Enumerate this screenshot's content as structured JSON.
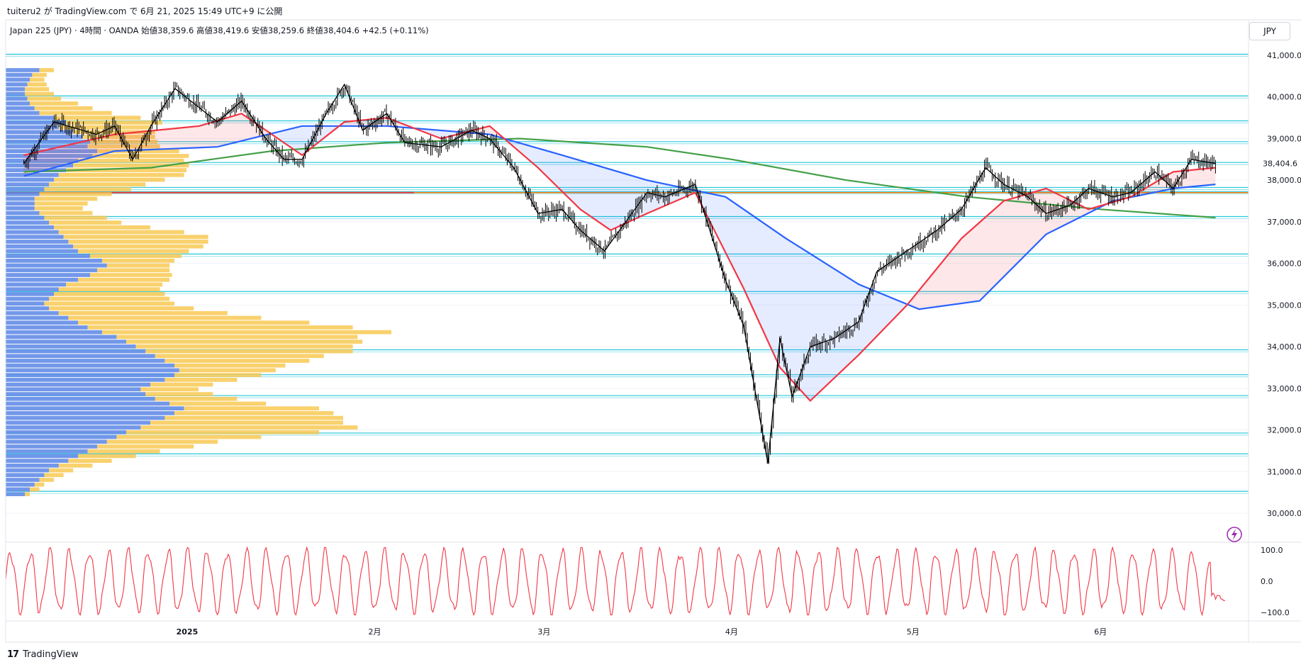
{
  "header": {
    "published_line": "tuiteru2 が TradingView.com で 6月 21, 2025 15:49 UTC+9 に公開",
    "symbol_line": "Japan 225 (JPY) · 4時間 · OANDA  始値38,359.6  高値38,419.6  安値38,259.6  終値38,404.6  +42.5 (+0.11%)",
    "currency": "JPY"
  },
  "footer": {
    "brand": "TradingView",
    "brand_mark": "17"
  },
  "colors": {
    "candle": "#000000",
    "ma_fast": "#f23645",
    "ma_mid": "#2962ff",
    "ma_slow": "#43a047",
    "sr_line": "#26c6da",
    "poc_line": "#f57c00",
    "vp_up": "#5b86e5",
    "vp_down": "#f7c548",
    "oscillator": "#f23645",
    "axis_text": "#131722",
    "grid": "#f0f3fa"
  },
  "chart_data": [
    {
      "type": "line",
      "name": "price",
      "y_axis_ticks": [
        "41,000.0",
        "40,000.0",
        "39,000.0",
        "38,000.0",
        "37,000.0",
        "36,000.0",
        "35,000.0",
        "34,000.0",
        "33,000.0",
        "32,000.0",
        "31,000.0",
        "30,000.0"
      ],
      "ylim": [
        29800,
        41200
      ],
      "x_labels": [
        "2025",
        "2月",
        "3月",
        "4月",
        "5月",
        "6月"
      ],
      "last_price_label": "38,404.6",
      "last_price": 38404.6,
      "close_path": [
        {
          "x": "2024-12-05",
          "y": 38400
        },
        {
          "x": "2024-12-10",
          "y": 39400
        },
        {
          "x": "2024-12-17",
          "y": 39100
        },
        {
          "x": "2024-12-20",
          "y": 39300
        },
        {
          "x": "2024-12-23",
          "y": 38500
        },
        {
          "x": "2024-12-26",
          "y": 39300
        },
        {
          "x": "2024-12-30",
          "y": 40200
        },
        {
          "x": "2025-01-06",
          "y": 39400
        },
        {
          "x": "2025-01-10",
          "y": 39900
        },
        {
          "x": "2025-01-14",
          "y": 39000
        },
        {
          "x": "2025-01-17",
          "y": 38500
        },
        {
          "x": "2025-01-20",
          "y": 38500
        },
        {
          "x": "2025-01-24",
          "y": 39600
        },
        {
          "x": "2025-01-27",
          "y": 40300
        },
        {
          "x": "2025-01-30",
          "y": 39200
        },
        {
          "x": "2025-02-03",
          "y": 39600
        },
        {
          "x": "2025-02-06",
          "y": 38900
        },
        {
          "x": "2025-02-12",
          "y": 38800
        },
        {
          "x": "2025-02-17",
          "y": 39200
        },
        {
          "x": "2025-02-20",
          "y": 39000
        },
        {
          "x": "2025-02-24",
          "y": 38300
        },
        {
          "x": "2025-02-28",
          "y": 37200
        },
        {
          "x": "2025-03-04",
          "y": 37300
        },
        {
          "x": "2025-03-07",
          "y": 36800
        },
        {
          "x": "2025-03-11",
          "y": 36300
        },
        {
          "x": "2025-03-14",
          "y": 36900
        },
        {
          "x": "2025-03-18",
          "y": 37700
        },
        {
          "x": "2025-03-21",
          "y": 37600
        },
        {
          "x": "2025-03-26",
          "y": 37900
        },
        {
          "x": "2025-03-31",
          "y": 35600
        },
        {
          "x": "2025-04-03",
          "y": 34500
        },
        {
          "x": "2025-04-07",
          "y": 31200
        },
        {
          "x": "2025-04-09",
          "y": 34200
        },
        {
          "x": "2025-04-11",
          "y": 32800
        },
        {
          "x": "2025-04-14",
          "y": 34000
        },
        {
          "x": "2025-04-18",
          "y": 34200
        },
        {
          "x": "2025-04-22",
          "y": 34600
        },
        {
          "x": "2025-04-25",
          "y": 35800
        },
        {
          "x": "2025-04-30",
          "y": 36300
        },
        {
          "x": "2025-05-05",
          "y": 36800
        },
        {
          "x": "2025-05-09",
          "y": 37300
        },
        {
          "x": "2025-05-13",
          "y": 38300
        },
        {
          "x": "2025-05-16",
          "y": 37900
        },
        {
          "x": "2025-05-20",
          "y": 37600
        },
        {
          "x": "2025-05-23",
          "y": 37200
        },
        {
          "x": "2025-05-27",
          "y": 37400
        },
        {
          "x": "2025-05-30",
          "y": 37800
        },
        {
          "x": "2025-06-03",
          "y": 37600
        },
        {
          "x": "2025-06-06",
          "y": 37700
        },
        {
          "x": "2025-06-10",
          "y": 38200
        },
        {
          "x": "2025-06-13",
          "y": 37800
        },
        {
          "x": "2025-06-16",
          "y": 38500
        },
        {
          "x": "2025-06-20",
          "y": 38400
        }
      ],
      "ma_fast": [
        {
          "x": "2024-12-05",
          "y": 38600
        },
        {
          "x": "2024-12-20",
          "y": 39100
        },
        {
          "x": "2025-01-03",
          "y": 39300
        },
        {
          "x": "2025-01-10",
          "y": 39600
        },
        {
          "x": "2025-01-20",
          "y": 38600
        },
        {
          "x": "2025-01-27",
          "y": 39400
        },
        {
          "x": "2025-02-03",
          "y": 39500
        },
        {
          "x": "2025-02-12",
          "y": 39000
        },
        {
          "x": "2025-02-20",
          "y": 39300
        },
        {
          "x": "2025-02-28",
          "y": 38300
        },
        {
          "x": "2025-03-07",
          "y": 37300
        },
        {
          "x": "2025-03-12",
          "y": 36800
        },
        {
          "x": "2025-03-18",
          "y": 37200
        },
        {
          "x": "2025-03-26",
          "y": 37700
        },
        {
          "x": "2025-04-03",
          "y": 35400
        },
        {
          "x": "2025-04-09",
          "y": 33500
        },
        {
          "x": "2025-04-14",
          "y": 32700
        },
        {
          "x": "2025-04-22",
          "y": 33800
        },
        {
          "x": "2025-04-30",
          "y": 35000
        },
        {
          "x": "2025-05-09",
          "y": 36600
        },
        {
          "x": "2025-05-16",
          "y": 37500
        },
        {
          "x": "2025-05-23",
          "y": 37800
        },
        {
          "x": "2025-05-30",
          "y": 37300
        },
        {
          "x": "2025-06-06",
          "y": 37600
        },
        {
          "x": "2025-06-13",
          "y": 38200
        },
        {
          "x": "2025-06-20",
          "y": 38300
        }
      ],
      "ma_mid": [
        {
          "x": "2024-12-05",
          "y": 38100
        },
        {
          "x": "2024-12-20",
          "y": 38700
        },
        {
          "x": "2025-01-06",
          "y": 38800
        },
        {
          "x": "2025-01-20",
          "y": 39300
        },
        {
          "x": "2025-02-03",
          "y": 39300
        },
        {
          "x": "2025-02-20",
          "y": 39100
        },
        {
          "x": "2025-03-04",
          "y": 38600
        },
        {
          "x": "2025-03-18",
          "y": 38000
        },
        {
          "x": "2025-03-31",
          "y": 37600
        },
        {
          "x": "2025-04-10",
          "y": 36600
        },
        {
          "x": "2025-04-22",
          "y": 35500
        },
        {
          "x": "2025-05-02",
          "y": 34900
        },
        {
          "x": "2025-05-12",
          "y": 35100
        },
        {
          "x": "2025-05-23",
          "y": 36700
        },
        {
          "x": "2025-06-03",
          "y": 37500
        },
        {
          "x": "2025-06-13",
          "y": 37800
        },
        {
          "x": "2025-06-20",
          "y": 37900
        }
      ],
      "ma_slow": [
        {
          "x": "2024-12-05",
          "y": 38200
        },
        {
          "x": "2024-12-26",
          "y": 38300
        },
        {
          "x": "2025-01-15",
          "y": 38700
        },
        {
          "x": "2025-02-03",
          "y": 38900
        },
        {
          "x": "2025-02-25",
          "y": 39000
        },
        {
          "x": "2025-03-18",
          "y": 38800
        },
        {
          "x": "2025-04-01",
          "y": 38500
        },
        {
          "x": "2025-04-20",
          "y": 38000
        },
        {
          "x": "2025-05-10",
          "y": 37600
        },
        {
          "x": "2025-06-01",
          "y": 37300
        },
        {
          "x": "2025-06-20",
          "y": 37100
        }
      ],
      "support_resistance": [
        41000,
        40000,
        39400,
        38900,
        38400,
        37800,
        37700,
        37100,
        36200,
        35300,
        33900,
        33300,
        32800,
        31900,
        31400,
        30500
      ],
      "poc_level": 37700
    },
    {
      "type": "bar",
      "name": "volume_profile",
      "orientation": "horizontal",
      "price_from": 30400,
      "price_to": 40700,
      "buy_volume": [
        14,
        11,
        10,
        9,
        8,
        8,
        9,
        10,
        12,
        14,
        20,
        25,
        22,
        28,
        32,
        35,
        34,
        38,
        36,
        30,
        28,
        25,
        22,
        20,
        18,
        16,
        14,
        12,
        12,
        12,
        14,
        16,
        18,
        20,
        22,
        24,
        26,
        28,
        30,
        35,
        40,
        42,
        38,
        35,
        30,
        25,
        22,
        20,
        18,
        16,
        18,
        22,
        26,
        30,
        34,
        40,
        46,
        50,
        54,
        58,
        62,
        66,
        70,
        72,
        70,
        66,
        60,
        56,
        58,
        62,
        68,
        74,
        70,
        66,
        60,
        56,
        50,
        46,
        42,
        38,
        34,
        30,
        26,
        22,
        18,
        16,
        14,
        12,
        10,
        8
      ],
      "sell_volume": [
        6,
        6,
        6,
        8,
        10,
        12,
        14,
        20,
        24,
        30,
        36,
        40,
        38,
        34,
        30,
        28,
        30,
        34,
        40,
        44,
        48,
        50,
        52,
        46,
        40,
        36,
        30,
        26,
        22,
        20,
        22,
        26,
        30,
        40,
        52,
        60,
        58,
        54,
        46,
        38,
        30,
        26,
        30,
        34,
        38,
        40,
        42,
        46,
        50,
        54,
        60,
        70,
        80,
        96,
        110,
        120,
        100,
        98,
        90,
        86,
        70,
        60,
        46,
        40,
        36,
        30,
        26,
        24,
        28,
        34,
        40,
        56,
        66,
        74,
        80,
        90,
        80,
        60,
        46,
        40,
        30,
        24,
        18,
        14,
        10,
        8,
        6,
        4,
        4,
        2
      ]
    },
    {
      "type": "line",
      "name": "oscillator",
      "y_axis_ticks": [
        "100.0",
        "0.0",
        "−100.0"
      ],
      "ylim": [
        -110,
        115
      ],
      "last_value": -48,
      "cycles": 62
    }
  ]
}
